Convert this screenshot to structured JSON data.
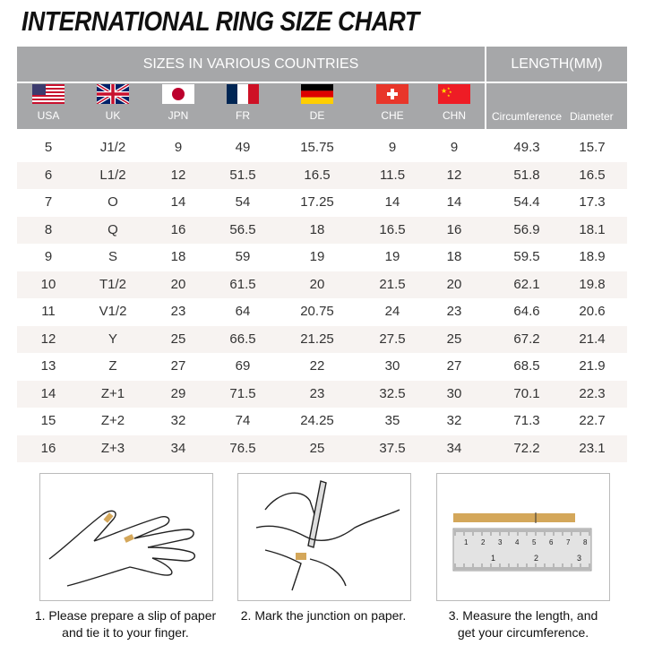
{
  "title": "INTERNATIONAL RING SIZE CHART",
  "header": {
    "sizes_group": "SIZES IN VARIOUS COUNTRIES",
    "length_group": "LENGTH(MM)",
    "countries": [
      {
        "code": "USA",
        "flag": "us-flag-icon"
      },
      {
        "code": "UK",
        "flag": "uk-flag-icon"
      },
      {
        "code": "JPN",
        "flag": "japan-flag-icon"
      },
      {
        "code": "FR",
        "flag": "france-flag-icon"
      },
      {
        "code": "DE",
        "flag": "germany-flag-icon"
      },
      {
        "code": "CHE",
        "flag": "switzerland-flag-icon"
      },
      {
        "code": "CHN",
        "flag": "china-flag-icon"
      }
    ],
    "length_cols": [
      "Circumference",
      "Diameter"
    ]
  },
  "rows": [
    [
      "5",
      "J1/2",
      "9",
      "49",
      "15.75",
      "9",
      "9",
      "49.3",
      "15.7"
    ],
    [
      "6",
      "L1/2",
      "12",
      "51.5",
      "16.5",
      "11.5",
      "12",
      "51.8",
      "16.5"
    ],
    [
      "7",
      "O",
      "14",
      "54",
      "17.25",
      "14",
      "14",
      "54.4",
      "17.3"
    ],
    [
      "8",
      "Q",
      "16",
      "56.5",
      "18",
      "16.5",
      "16",
      "56.9",
      "18.1"
    ],
    [
      "9",
      "S",
      "18",
      "59",
      "19",
      "19",
      "18",
      "59.5",
      "18.9"
    ],
    [
      "10",
      "T1/2",
      "20",
      "61.5",
      "20",
      "21.5",
      "20",
      "62.1",
      "19.8"
    ],
    [
      "11",
      "V1/2",
      "23",
      "64",
      "20.75",
      "24",
      "23",
      "64.6",
      "20.6"
    ],
    [
      "12",
      "Y",
      "25",
      "66.5",
      "21.25",
      "27.5",
      "25",
      "67.2",
      "21.4"
    ],
    [
      "13",
      "Z",
      "27",
      "69",
      "22",
      "30",
      "27",
      "68.5",
      "21.9"
    ],
    [
      "14",
      "Z+1",
      "29",
      "71.5",
      "23",
      "32.5",
      "30",
      "70.1",
      "22.3"
    ],
    [
      "15",
      "Z+2",
      "32",
      "74",
      "24.25",
      "35",
      "32",
      "71.3",
      "22.7"
    ],
    [
      "16",
      "Z+3",
      "34",
      "76.5",
      "25",
      "37.5",
      "34",
      "72.2",
      "23.1"
    ]
  ],
  "steps": [
    {
      "line1": "1. Please prepare a slip of paper",
      "line2": "and tie it to your finger."
    },
    {
      "line1": "2. Mark the junction on paper.",
      "line2": ""
    },
    {
      "line1": "3. Measure the length, and",
      "line2": "get your circumference."
    }
  ],
  "ruler": {
    "cm": [
      "1",
      "2",
      "3",
      "4",
      "5",
      "6",
      "7",
      "8"
    ],
    "inch": [
      "1",
      "2",
      "3"
    ]
  },
  "colors": {
    "header_bg": "#a6a7a9",
    "row_alt": "#f7f3f1",
    "paper_strip": "#d4a75a"
  }
}
